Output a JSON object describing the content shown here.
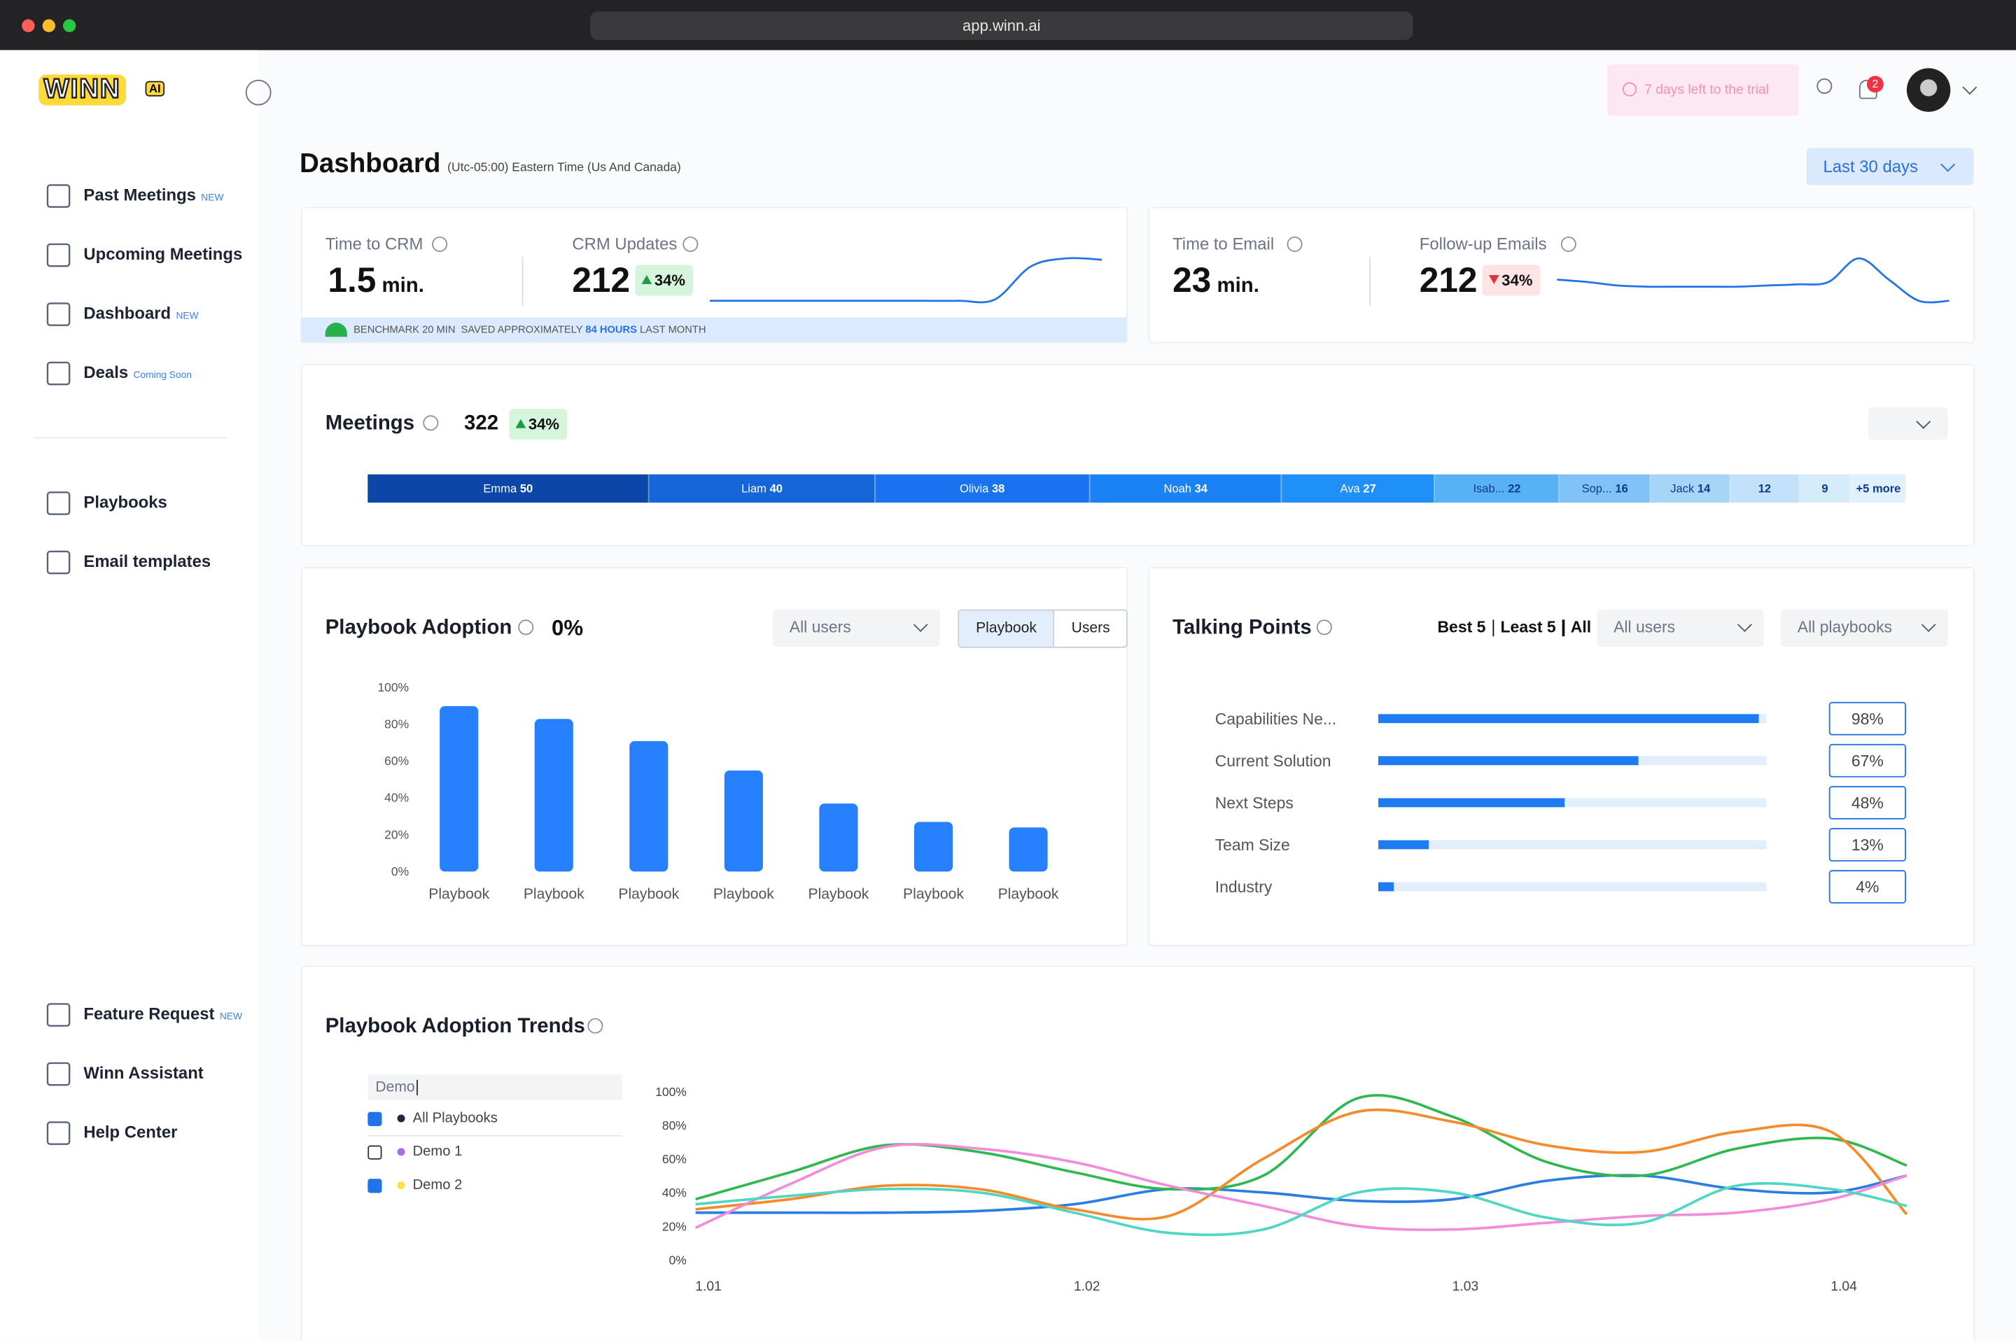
{
  "browser": {
    "url": "app.winn.ai"
  },
  "sidebar": {
    "logo": "WINN",
    "logo_badge": "AI",
    "nav": [
      {
        "label": "Past Meetings",
        "badge": "NEW"
      },
      {
        "label": "Upcoming Meetings"
      },
      {
        "label": "Dashboard",
        "badge": "NEW"
      },
      {
        "label": "Deals",
        "badge": "Coming Soon"
      }
    ],
    "tools": [
      {
        "label": "Playbooks"
      },
      {
        "label": "Email templates"
      }
    ],
    "footer": [
      {
        "label": "Feature Request",
        "badge": "NEW"
      },
      {
        "label": "Winn Assistant"
      },
      {
        "label": "Help Center"
      }
    ]
  },
  "topbar": {
    "trial": "7 days left to the trial",
    "notification_count": "2"
  },
  "dashboard": {
    "title": "Dashboard",
    "timezone": "(Utc-05:00) Eastern Time (Us And Canada)",
    "range": "Last 30 days"
  },
  "crm": {
    "time_label": "Time to CRM",
    "time_value": "1.5",
    "time_unit": "min.",
    "updates_label": "CRM Updates",
    "updates_value": "212",
    "updates_change": "34%",
    "updates_trend": [
      5,
      5,
      5,
      5,
      5,
      5,
      5,
      5,
      6,
      30,
      36,
      35
    ],
    "benchmark": "BENCHMARK 20 MIN",
    "saved": "SAVED APPROXIMATELY",
    "saved_hours": "84 HOURS",
    "saved_period": "LAST MONTH"
  },
  "email": {
    "time_label": "Time to Email",
    "time_value": "23",
    "time_unit": "min.",
    "followup_label": "Follow-up Emails",
    "followup_value": "212",
    "followup_change": "34%",
    "followup_trend": [
      30,
      28,
      25,
      24,
      24,
      24,
      24,
      25,
      26,
      28,
      48,
      30,
      12,
      12
    ]
  },
  "meetings": {
    "title": "Meetings",
    "total": "322",
    "change": "34%",
    "segments": [
      {
        "name": "Emma",
        "value": 50,
        "color": "#0b47a8"
      },
      {
        "name": "Liam",
        "value": 40,
        "color": "#1565d8"
      },
      {
        "name": "Olivia",
        "value": 38,
        "color": "#1a72ee"
      },
      {
        "name": "Noah",
        "value": 34,
        "color": "#1b82f5"
      },
      {
        "name": "Ava",
        "value": 27,
        "color": "#1f90f7"
      },
      {
        "name": "Isab...",
        "value": 22,
        "color": "#58b0f5"
      },
      {
        "name": "Sop...",
        "value": 16,
        "color": "#7ec2f6"
      },
      {
        "name": "Jack",
        "value": 14,
        "color": "#a7d5f8"
      },
      {
        "name": null,
        "value": 12,
        "color": "#c3e2fa"
      },
      {
        "name": null,
        "value": 9,
        "color": "#d6ecfb"
      }
    ],
    "more": "+5 more"
  },
  "playbook_adoption": {
    "title": "Playbook Adoption",
    "value": "0%",
    "filter": "All users",
    "toggle": [
      "Playbook",
      "Users"
    ],
    "toggle_active": 0,
    "chart": {
      "type": "bar",
      "categories": [
        "Playbook",
        "Playbook",
        "Playbook",
        "Playbook",
        "Playbook",
        "Playbook",
        "Playbook"
      ],
      "values": [
        90,
        83,
        71,
        55,
        37,
        27,
        24
      ],
      "color": "#2680fb",
      "ylim": [
        0,
        100
      ],
      "yticks": [
        {
          "value": 0,
          "label": "0%"
        },
        {
          "value": 20,
          "label": "20%"
        },
        {
          "value": 40,
          "label": "40%"
        },
        {
          "value": 60,
          "label": "60%"
        },
        {
          "value": 80,
          "label": "80%"
        },
        {
          "value": 100,
          "label": "100%"
        }
      ]
    }
  },
  "talking_points": {
    "title": "Talking Points",
    "tabs": [
      "Best 5",
      "Least 5",
      "All"
    ],
    "filters": [
      "All users",
      "All playbooks"
    ],
    "chart": {
      "type": "bar",
      "orientation": "horizontal",
      "categories": [
        "Capabilities Ne...",
        "Current Solution",
        "Next Steps",
        "Team Size",
        "Industry"
      ],
      "values": [
        98,
        67,
        48,
        13,
        4
      ],
      "value_labels": [
        "98%",
        "67%",
        "48%",
        "13%",
        "4%"
      ],
      "xlim": [
        0,
        100
      ],
      "color": "#1e7bf2",
      "track_color": "#e3eefc"
    }
  },
  "trends": {
    "title": "Playbook Adoption Trends",
    "search": "Demo",
    "legend": [
      {
        "name": "All Playbooks",
        "checked": true,
        "color": "#1f2937"
      },
      {
        "name": "Demo 1",
        "checked": false,
        "color": "#a66cf0"
      },
      {
        "name": "Demo 2",
        "checked": true,
        "color": "#fde047"
      }
    ],
    "chart": {
      "type": "line",
      "x": [
        1.01,
        1.0125,
        1.015,
        1.0175,
        1.02,
        1.0225,
        1.025,
        1.0275,
        1.03,
        1.0325,
        1.035,
        1.0375,
        1.04,
        1.042
      ],
      "xlim": [
        1.01,
        1.042
      ],
      "xticks": [
        1.01,
        1.02,
        1.03,
        1.04
      ],
      "ylim": [
        0,
        100
      ],
      "yticks": [
        {
          "value": 0,
          "label": "0%"
        },
        {
          "value": 20,
          "label": "20%"
        },
        {
          "value": 40,
          "label": "40%"
        },
        {
          "value": 60,
          "label": "60%"
        },
        {
          "value": 80,
          "label": "80%"
        },
        {
          "value": 100,
          "label": "100%"
        }
      ],
      "grid": false,
      "series": [
        {
          "color": "#2a7de1",
          "values": [
            28,
            28,
            28,
            29,
            33,
            42,
            40,
            35,
            36,
            47,
            50,
            42,
            40,
            50
          ]
        },
        {
          "color": "#2fb84f",
          "values": [
            36,
            52,
            68,
            64,
            52,
            42,
            50,
            96,
            85,
            58,
            50,
            66,
            72,
            56
          ]
        },
        {
          "color": "#f58a2a",
          "values": [
            30,
            36,
            44,
            42,
            30,
            26,
            60,
            88,
            82,
            68,
            64,
            76,
            76,
            27
          ]
        },
        {
          "color": "#f28bd8",
          "values": [
            19,
            45,
            67,
            66,
            58,
            44,
            32,
            20,
            18,
            22,
            26,
            28,
            36,
            50
          ]
        },
        {
          "color": "#4fd6c4",
          "values": [
            33,
            38,
            42,
            40,
            28,
            16,
            18,
            40,
            40,
            25,
            22,
            44,
            42,
            32
          ]
        }
      ]
    }
  }
}
